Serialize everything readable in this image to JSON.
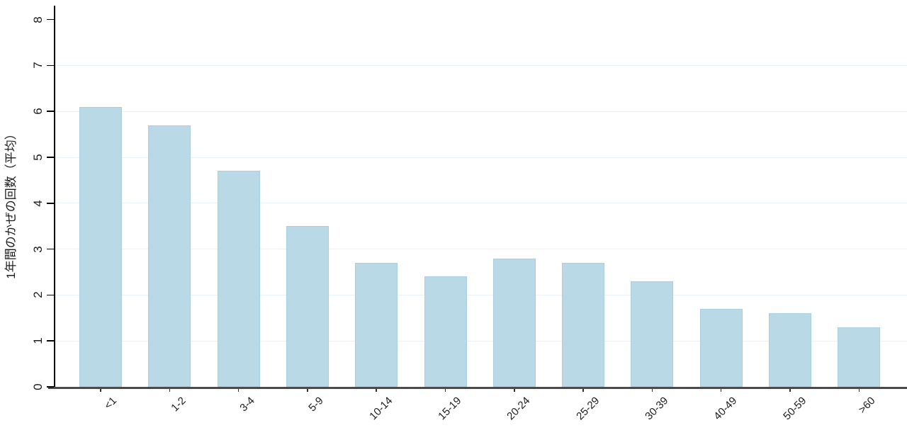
{
  "chart_data": {
    "type": "bar",
    "title": "",
    "xlabel": "",
    "ylabel": "1年間のかぜの回数（平均）",
    "categories": [
      "<1",
      "1-2",
      "3-4",
      "5-9",
      "10-14",
      "15-19",
      "20-24",
      "25-29",
      "30-39",
      "40-49",
      "50-59",
      ">60"
    ],
    "values": [
      6.1,
      5.7,
      4.7,
      3.5,
      2.7,
      2.4,
      2.8,
      2.7,
      2.3,
      1.7,
      1.6,
      1.3
    ],
    "ylim": [
      0,
      8
    ],
    "yticks": [
      0,
      1,
      2,
      3,
      4,
      5,
      6,
      7,
      8
    ],
    "ytick_labels": [
      "0",
      "1",
      "2",
      "3",
      "4",
      "5",
      "6",
      "7",
      "8"
    ],
    "gridline_values": [
      1,
      2,
      3,
      4,
      5,
      6,
      7
    ],
    "grid": "horizontal",
    "legend_position": "none",
    "colors": {
      "bar_fill": "#bad9e7",
      "bar_edge": "#a9cfe0",
      "gridline": "#e9f1f6",
      "y_axis": "#000000",
      "x_axis": "#4a4a4a",
      "text": "#1c1c1c"
    }
  }
}
